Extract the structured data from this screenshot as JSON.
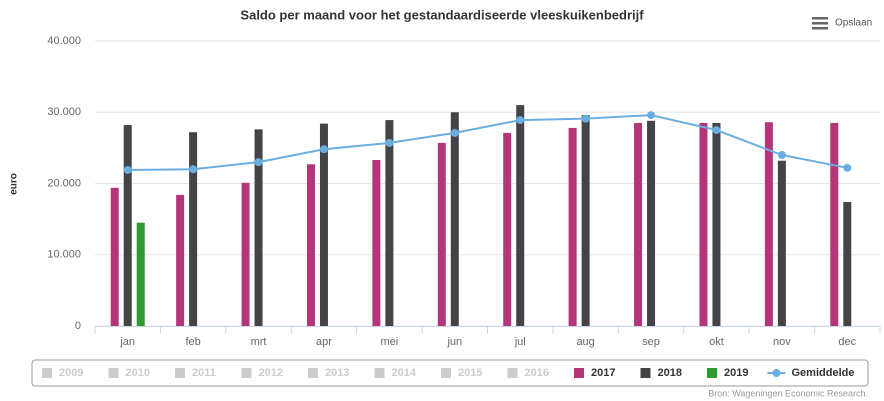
{
  "chart_data": {
    "type": "bar",
    "title": "Saldo per maand voor het gestandaardiseerde vleeskuikenbedrijf",
    "y_axis_label": "euro",
    "menu_label": "Opslaan",
    "credits": "Bron: Wageningen Economic Research.",
    "categories": [
      "jan",
      "feb",
      "mrt",
      "apr",
      "mei",
      "jun",
      "jul",
      "aug",
      "sep",
      "okt",
      "nov",
      "dec"
    ],
    "ylim": [
      0,
      40000
    ],
    "yticks": [
      0,
      {
        "value": 10000,
        "label": "10.000"
      },
      {
        "value": 20000,
        "label": "20.000"
      },
      {
        "value": 30000,
        "label": "30.000"
      },
      {
        "value": 40000,
        "label": "40.000"
      }
    ],
    "grid": true,
    "legend_hidden": [
      "2009",
      "2010",
      "2011",
      "2012",
      "2013",
      "2014",
      "2015",
      "2016"
    ],
    "series": [
      {
        "name": "2017",
        "type": "bar",
        "color": "#b5357a",
        "values": [
          19400,
          18400,
          20100,
          22700,
          23300,
          25700,
          27100,
          27800,
          28500,
          28500,
          28600,
          28500
        ]
      },
      {
        "name": "2018",
        "type": "bar",
        "color": "#434348",
        "values": [
          28200,
          27200,
          27600,
          28400,
          28900,
          30000,
          31000,
          29600,
          28800,
          28500,
          23200,
          17400
        ]
      },
      {
        "name": "2019",
        "type": "bar",
        "color": "#2f9a2f",
        "values": [
          14500,
          null,
          null,
          null,
          null,
          null,
          null,
          null,
          null,
          null,
          null,
          null
        ]
      },
      {
        "name": "Gemiddelde",
        "type": "line",
        "color": "#6aaee0",
        "values": [
          21900,
          22000,
          23000,
          24800,
          25700,
          27100,
          28900,
          29100,
          29600,
          27500,
          24000,
          22200
        ]
      }
    ]
  }
}
